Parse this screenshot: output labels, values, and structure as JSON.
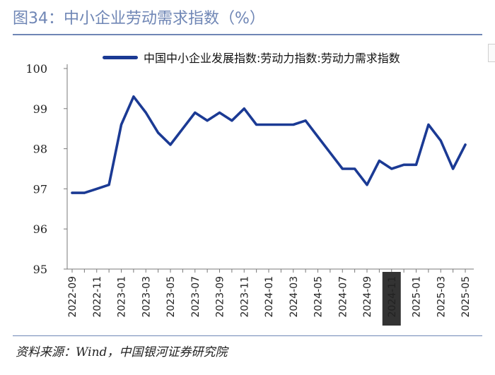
{
  "header": {
    "title": "图34：中小企业劳动需求指数（%）"
  },
  "footer": {
    "source": "资料来源：Wind，中国银河证券研究院"
  },
  "colors": {
    "line": "#1b3a94",
    "title": "#6f86b5",
    "highlight_box": "#333333"
  },
  "chart_data": {
    "type": "line",
    "title": "",
    "xlabel": "",
    "ylabel": "",
    "ylim": [
      95,
      100
    ],
    "yticks": [
      95,
      96,
      97,
      98,
      99,
      100
    ],
    "legend_position": "top",
    "grid": false,
    "x": [
      "2022-09",
      "2022-10",
      "2022-11",
      "2022-12",
      "2023-01",
      "2023-02",
      "2023-03",
      "2023-04",
      "2023-05",
      "2023-06",
      "2023-07",
      "2023-08",
      "2023-09",
      "2023-10",
      "2023-11",
      "2023-12",
      "2024-01",
      "2024-02",
      "2024-03",
      "2024-04",
      "2024-05",
      "2024-06",
      "2024-07",
      "2024-08",
      "2024-09",
      "2024-10",
      "2024-11",
      "2024-12",
      "2025-01",
      "2025-02",
      "2025-03",
      "2025-04",
      "2025-05"
    ],
    "xtick_labels": [
      "2022-09",
      "2022-11",
      "2023-01",
      "2023-03",
      "2023-05",
      "2023-07",
      "2023-09",
      "2023-11",
      "2024-01",
      "2024-03",
      "2024-05",
      "2024-07",
      "2024-09",
      "2024-11",
      "2025-01",
      "2025-03",
      "2025-05"
    ],
    "highlighted_tick": "2024-11",
    "series": [
      {
        "name": "中国中小企业发展指数:劳动力指数:劳动力需求指数",
        "values": [
          96.9,
          96.9,
          97.0,
          97.1,
          98.6,
          99.3,
          98.9,
          98.4,
          98.1,
          98.5,
          98.9,
          98.7,
          98.9,
          98.7,
          99.0,
          98.6,
          98.6,
          98.6,
          98.6,
          98.7,
          98.3,
          97.9,
          97.5,
          97.5,
          97.1,
          97.7,
          97.5,
          97.6,
          97.6,
          98.6,
          98.2,
          97.5,
          98.1
        ]
      }
    ]
  }
}
